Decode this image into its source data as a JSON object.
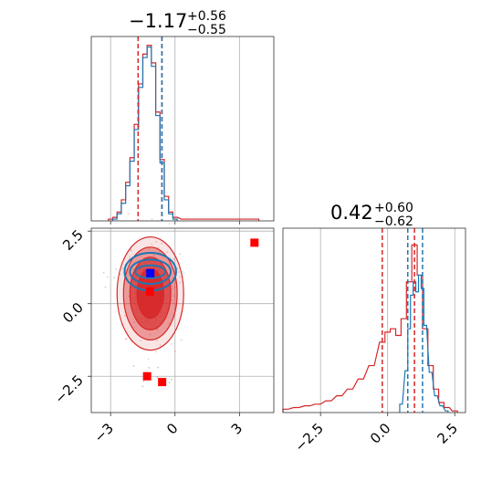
{
  "colors": {
    "red": "#d62728",
    "blue": "#1f77b4",
    "marker_red": "#ff0000",
    "marker_blue": "#0000ff",
    "grid": "#b0b0b0"
  },
  "chart_data": {
    "type": "corner",
    "panels": {
      "param1_hist": {
        "title": {
          "main": "−1.17",
          "sup": "+0.56",
          "sub": "−0.55"
        },
        "xlim": [
          -3.9,
          4.6
        ],
        "red_lines": [
          -1.72,
          -0.61
        ],
        "blue_lines": [
          -0.61
        ],
        "red_hist": [
          [
            -3.0,
            0.01
          ],
          [
            -2.8,
            0.02
          ],
          [
            -2.6,
            0.05
          ],
          [
            -2.4,
            0.12
          ],
          [
            -2.2,
            0.22
          ],
          [
            -2.0,
            0.36
          ],
          [
            -1.8,
            0.55
          ],
          [
            -1.6,
            0.78
          ],
          [
            -1.4,
            0.95
          ],
          [
            -1.2,
            1.0
          ],
          [
            -1.0,
            0.9
          ],
          [
            -0.8,
            0.62
          ],
          [
            -0.6,
            0.35
          ],
          [
            -0.4,
            0.14
          ],
          [
            -0.2,
            0.05
          ],
          [
            0.0,
            0.02
          ],
          [
            0.4,
            0.01
          ],
          [
            3.8,
            0.01
          ]
        ],
        "blue_hist": [
          [
            -2.8,
            0.01
          ],
          [
            -2.6,
            0.04
          ],
          [
            -2.4,
            0.1
          ],
          [
            -2.2,
            0.2
          ],
          [
            -2.0,
            0.34
          ],
          [
            -1.8,
            0.52
          ],
          [
            -1.6,
            0.76
          ],
          [
            -1.4,
            0.93
          ],
          [
            -1.2,
            0.99
          ],
          [
            -1.0,
            0.88
          ],
          [
            -0.8,
            0.6
          ],
          [
            -0.6,
            0.33
          ],
          [
            -0.4,
            0.12
          ],
          [
            -0.2,
            0.04
          ],
          [
            0.0,
            0.01
          ]
        ]
      },
      "param2_hist": {
        "title": {
          "main": "0.42",
          "sup": "+0.60",
          "sub": "−0.62"
        },
        "xlim": [
          -3.9,
          2.9
        ],
        "xticks": [
          "−2.5",
          "0.0",
          "2.5"
        ],
        "xtick_values": [
          -2.5,
          0.0,
          2.5
        ],
        "red_lines": [
          -0.2,
          1.0
        ],
        "blue_lines": [
          0.75,
          1.3
        ],
        "red_hist": [
          [
            -3.8,
            0.02
          ],
          [
            -3.4,
            0.03
          ],
          [
            -3.0,
            0.04
          ],
          [
            -2.6,
            0.05
          ],
          [
            -2.2,
            0.07
          ],
          [
            -1.8,
            0.1
          ],
          [
            -1.4,
            0.14
          ],
          [
            -1.0,
            0.2
          ],
          [
            -0.6,
            0.28
          ],
          [
            -0.2,
            0.42
          ],
          [
            0.0,
            0.48
          ],
          [
            0.2,
            0.5
          ],
          [
            0.4,
            0.46
          ],
          [
            0.6,
            0.56
          ],
          [
            0.8,
            0.78
          ],
          [
            1.0,
            1.0
          ],
          [
            1.2,
            0.82
          ],
          [
            1.4,
            0.5
          ],
          [
            1.6,
            0.28
          ],
          [
            1.8,
            0.14
          ],
          [
            2.0,
            0.06
          ],
          [
            2.2,
            0.03
          ],
          [
            2.5,
            0.01
          ]
        ],
        "blue_hist": [
          [
            0.5,
            0.05
          ],
          [
            0.7,
            0.25
          ],
          [
            0.8,
            0.5
          ],
          [
            0.9,
            0.7
          ],
          [
            1.0,
            0.78
          ],
          [
            1.1,
            0.72
          ],
          [
            1.2,
            0.82
          ],
          [
            1.3,
            0.74
          ],
          [
            1.4,
            0.52
          ],
          [
            1.6,
            0.24
          ],
          [
            1.8,
            0.1
          ],
          [
            2.0,
            0.04
          ],
          [
            2.2,
            0.01
          ]
        ]
      },
      "joint": {
        "xlim": [
          -3.9,
          4.6
        ],
        "ylim": [
          -3.75,
          2.6
        ],
        "xticks": [
          "−3",
          "0",
          "3"
        ],
        "xtick_values": [
          -3,
          0,
          3
        ],
        "yticks": [
          "2.5",
          "0.0",
          "−2.5"
        ],
        "ytick_values": [
          2.5,
          0.0,
          -2.5
        ],
        "red_contours": [
          {
            "cx": -1.15,
            "cy": 0.35,
            "rx": 1.55,
            "ry": 1.95,
            "opacity": 0.12
          },
          {
            "cx": -1.15,
            "cy": 0.35,
            "rx": 1.25,
            "ry": 1.6,
            "opacity": 0.4
          },
          {
            "cx": -1.15,
            "cy": 0.35,
            "rx": 0.95,
            "ry": 1.25,
            "opacity": 0.65
          },
          {
            "cx": -1.15,
            "cy": 0.35,
            "rx": 0.62,
            "ry": 0.85,
            "opacity": 0.85
          }
        ],
        "blue_contours": [
          {
            "cx": -1.15,
            "cy": 1.1,
            "rx": 1.2,
            "ry": 0.65
          },
          {
            "cx": -1.15,
            "cy": 1.1,
            "rx": 0.95,
            "ry": 0.42
          },
          {
            "cx": -1.15,
            "cy": 1.1,
            "rx": 0.7,
            "ry": 0.22
          }
        ],
        "red_markers": [
          {
            "x": 3.7,
            "y": 2.1
          },
          {
            "x": -1.17,
            "y": 0.42
          },
          {
            "x": -1.3,
            "y": -2.5
          },
          {
            "x": -0.6,
            "y": -2.7
          }
        ],
        "blue_markers": [
          {
            "x": -1.15,
            "y": 1.05
          }
        ]
      }
    }
  }
}
